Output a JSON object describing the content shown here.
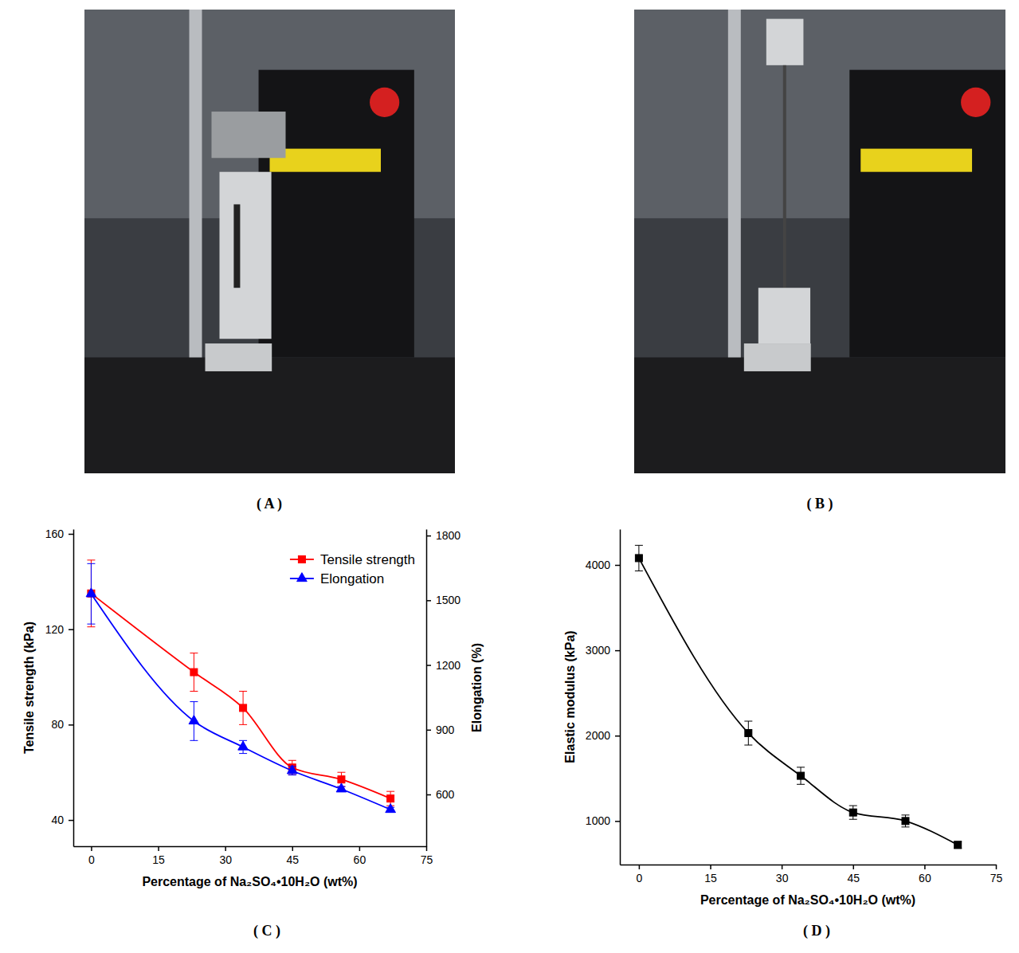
{
  "panel_labels": [
    "( A )",
    "( B )",
    "( C )",
    "( D )"
  ],
  "chart_data": [
    {
      "type": "line",
      "x_label": "Percentage of Na₂SO₄•10H₂O (wt%)",
      "y_label": "Tensile strength (kPa)",
      "y2_label": "Elongation (%)",
      "x": [
        0,
        23,
        34,
        45,
        56,
        67
      ],
      "xlim": [
        -4,
        75
      ],
      "xticks": [
        0,
        15,
        30,
        45,
        60,
        75
      ],
      "ylim": [
        29,
        162
      ],
      "yticks": [
        40,
        80,
        120,
        160
      ],
      "y2lim": [
        360,
        1830
      ],
      "y2ticks": [
        600,
        900,
        1200,
        1500,
        1800
      ],
      "legend": "upper right",
      "series": [
        {
          "name": "Tensile strength",
          "color": "#ff0000",
          "marker": "square",
          "values": [
            135,
            102,
            87,
            62,
            57,
            49
          ],
          "errors": [
            14,
            8,
            7,
            3,
            3,
            3
          ]
        },
        {
          "name": "Elongation",
          "color": "#0000ff",
          "marker": "triangle",
          "axis": "y2",
          "values": [
            1530,
            940,
            820,
            710,
            625,
            530
          ],
          "errors": [
            140,
            90,
            30,
            20,
            12,
            10
          ]
        }
      ]
    },
    {
      "type": "line",
      "x_label": "Percentage of Na₂SO₄•10H₂O (wt%)",
      "y_label": "Elastic modulus (kPa)",
      "x": [
        0,
        23,
        34,
        45,
        56,
        67
      ],
      "xlim": [
        -4,
        75
      ],
      "xticks": [
        0,
        15,
        30,
        45,
        60,
        75
      ],
      "ylim": [
        490,
        4420
      ],
      "yticks": [
        1000,
        2000,
        3000,
        4000
      ],
      "color": "#000000",
      "marker": "square",
      "values": [
        4080,
        2030,
        1530,
        1100,
        1000,
        720
      ],
      "errors": [
        150,
        140,
        100,
        80,
        70,
        40
      ]
    }
  ]
}
